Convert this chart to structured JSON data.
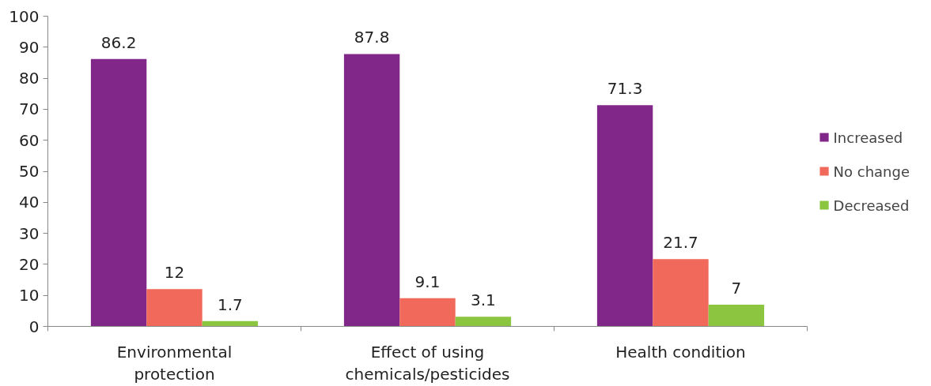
{
  "chart_data": {
    "type": "bar",
    "categories": [
      "Environmental\nprotection",
      "Effect of using\nchemicals/pesticides",
      "Health condition"
    ],
    "series": [
      {
        "name": "Increased",
        "color": "#82278a",
        "values": [
          86.2,
          87.8,
          71.3
        ]
      },
      {
        "name": "No change",
        "color": "#f0695a",
        "values": [
          12,
          9.1,
          21.7
        ]
      },
      {
        "name": "Decreased",
        "color": "#8cc540",
        "values": [
          1.7,
          3.1,
          7
        ]
      }
    ],
    "ylim": [
      0,
      100
    ],
    "yticks": [
      0,
      10,
      20,
      30,
      40,
      50,
      60,
      70,
      80,
      90,
      100
    ],
    "data_labels": true,
    "grid": false,
    "legend": "right"
  }
}
